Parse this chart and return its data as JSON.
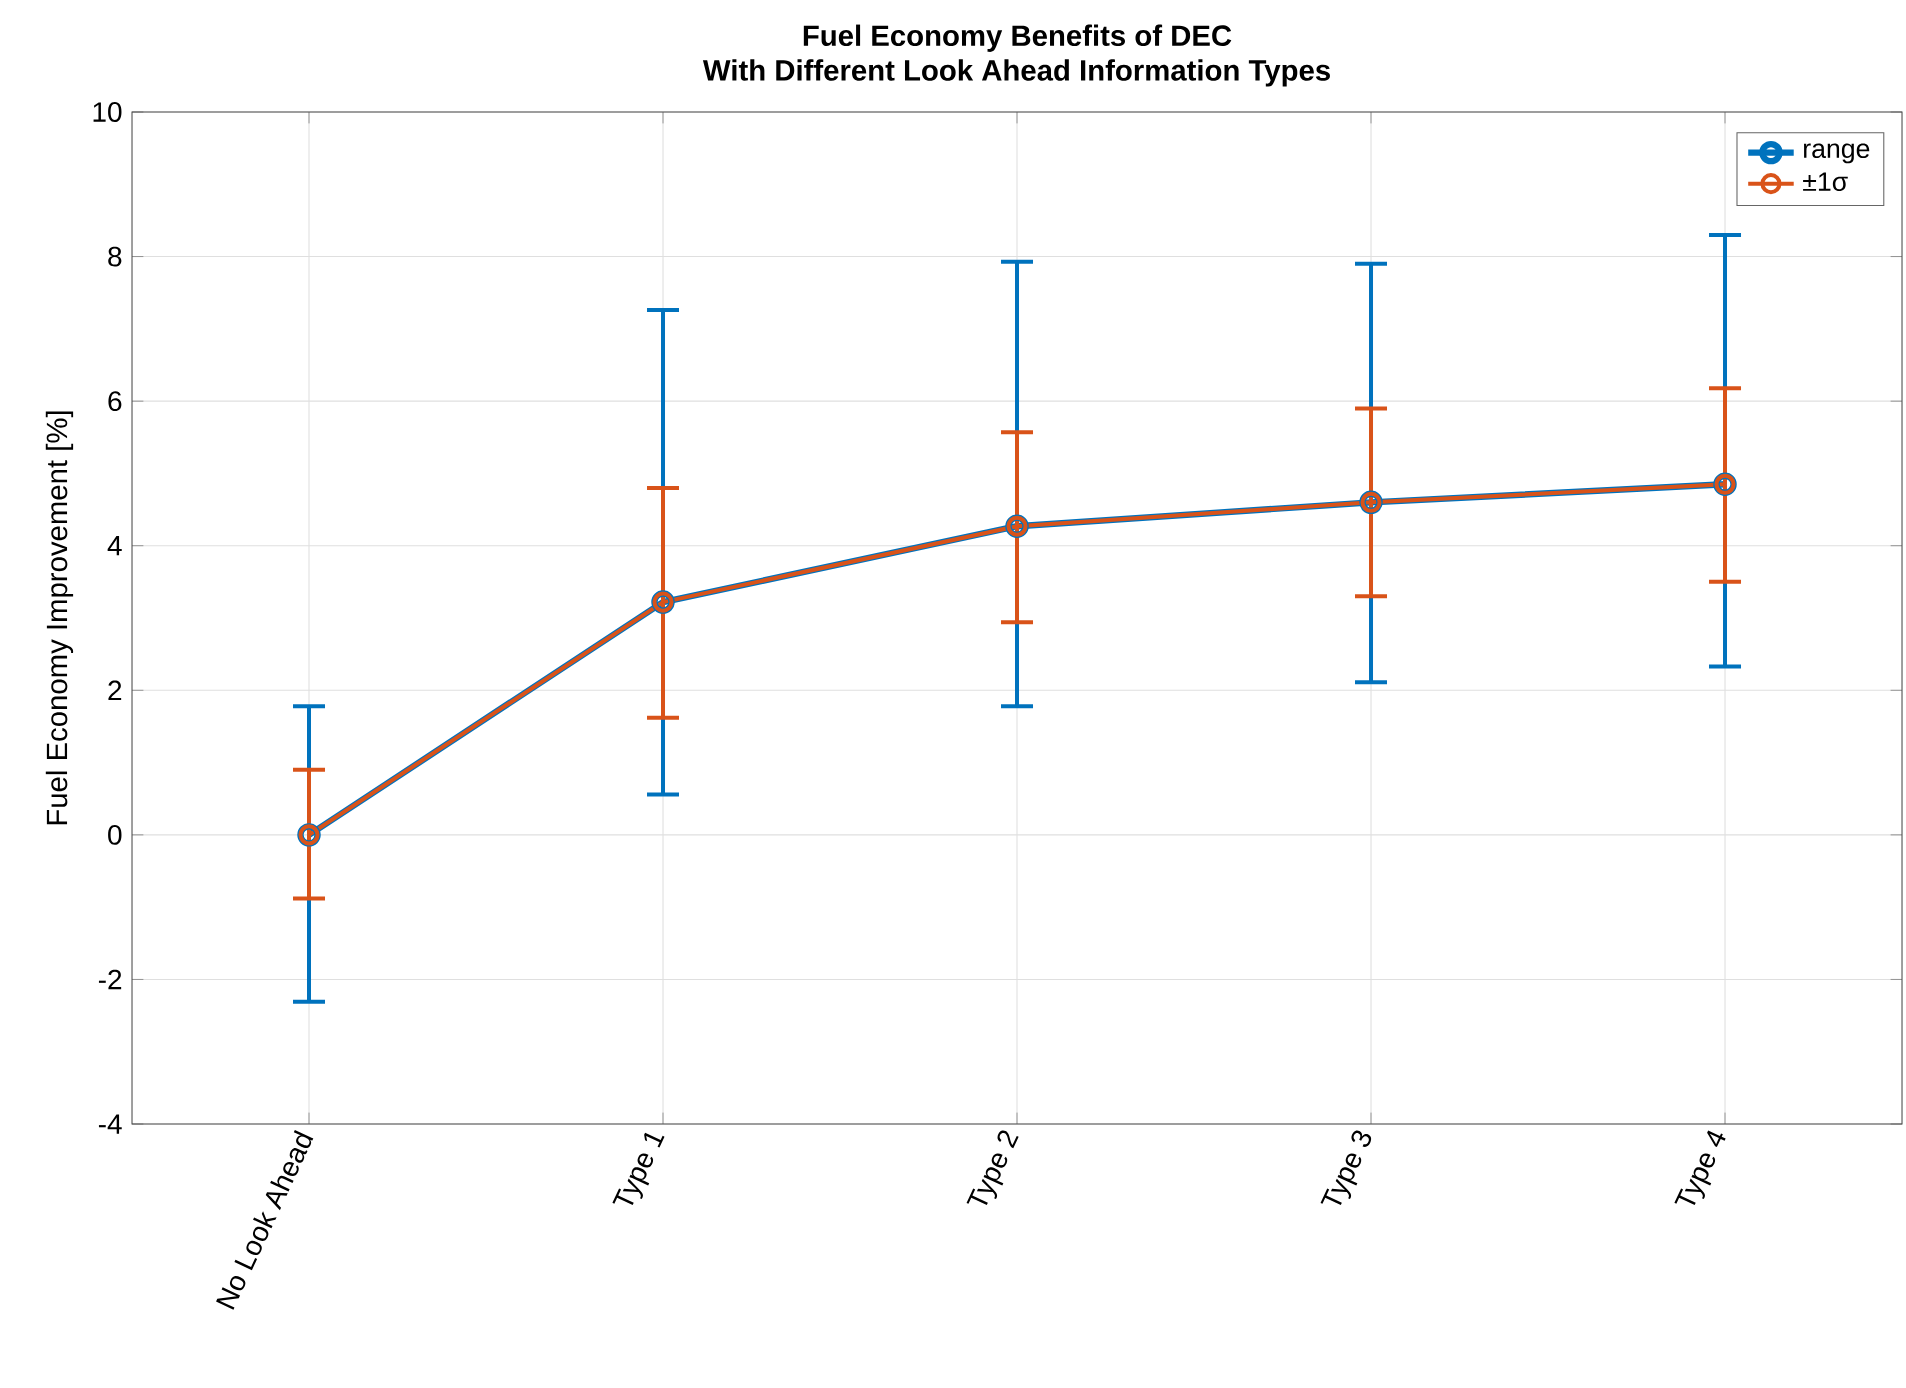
{
  "chart_data": {
    "type": "line",
    "title": "Fuel Economy Benefits of DEC",
    "subtitle": "With Different Look Ahead Information Types",
    "ylabel": "Fuel Economy Improvement [%]",
    "categories": [
      "No Look Ahead",
      "Type 1",
      "Type 2",
      "Type 3",
      "Type 4"
    ],
    "series": [
      {
        "name": "range",
        "color": "#0072bd",
        "values": [
          0,
          3.22,
          4.27,
          4.6,
          4.85
        ],
        "errors": [
          [
            -2.31,
            1.78
          ],
          [
            0.56,
            7.26
          ],
          [
            1.78,
            7.93
          ],
          [
            2.11,
            7.9
          ],
          [
            2.33,
            8.3
          ]
        ]
      },
      {
        "name": "±1σ",
        "color": "#d95319",
        "values": [
          0,
          3.22,
          4.27,
          4.6,
          4.85
        ],
        "errors": [
          [
            -0.88,
            0.9
          ],
          [
            1.62,
            4.8
          ],
          [
            2.94,
            5.57
          ],
          [
            3.3,
            5.9
          ],
          [
            3.5,
            6.18
          ]
        ]
      }
    ],
    "ylim": [
      -4,
      10
    ],
    "yticks": [
      -4,
      -2,
      0,
      2,
      4,
      6,
      8,
      10
    ],
    "grid": true,
    "legend": "top right",
    "marker": "circle",
    "line_style": "solid"
  }
}
